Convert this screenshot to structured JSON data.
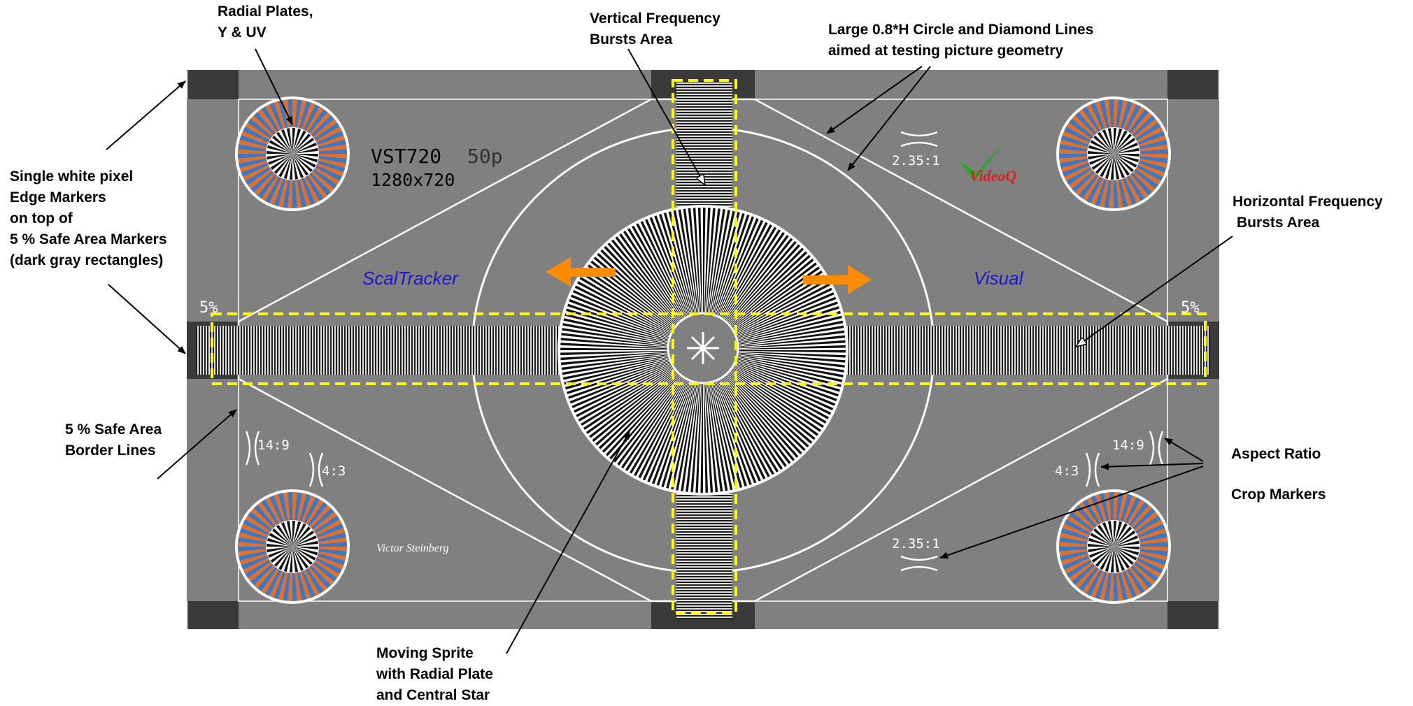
{
  "callouts": {
    "radial_plates": [
      "Radial Plates,",
      "Y & UV"
    ],
    "vertical_bursts": [
      "Vertical Frequency",
      "Bursts Area"
    ],
    "large_circle": [
      "Large 0.8*H Circle and Diamond Lines",
      "aimed at testing picture geometry"
    ],
    "edge_markers": [
      "Single white pixel",
      "Edge Markers",
      "on top of",
      "5 % Safe Area Markers",
      "(dark gray rectangles)"
    ],
    "horizontal_bursts": [
      "Horizontal Frequency",
      "Bursts Area"
    ],
    "safe_area_lines": [
      "5 % Safe Area",
      "Border Lines"
    ],
    "aspect_ratio": [
      "Aspect Ratio"
    ],
    "crop_markers": [
      "Crop Markers"
    ],
    "moving_sprite": [
      "Moving Sprite",
      "with Radial Plate",
      "and Central Star"
    ]
  },
  "chart": {
    "model": "VST720",
    "rate": "50p",
    "resolution": "1280x720",
    "label_left": "ScalTracker",
    "label_right": "Visual",
    "signature": "Victor Steinberg",
    "logo_text": "VideoQ",
    "safe_left": "5%",
    "safe_right": "5%",
    "ar_235_top": "2.35:1",
    "ar_235_bottom": "2.35:1",
    "ar_149_left": "14:9",
    "ar_43_left": "4:3",
    "ar_149_right": "14:9",
    "ar_43_right": "4:3"
  },
  "colors": {
    "chart_bg": "#808080",
    "marker_dark": "#3a3a3a",
    "highlight_box": "#ffff00",
    "arrow_orange": "#ff8c00",
    "plate_blue": "#3a78c8",
    "plate_orange": "#e0702a",
    "label_blue": "#1a1acc",
    "logo_green": "#22aa22",
    "logo_red": "#dd2222"
  }
}
